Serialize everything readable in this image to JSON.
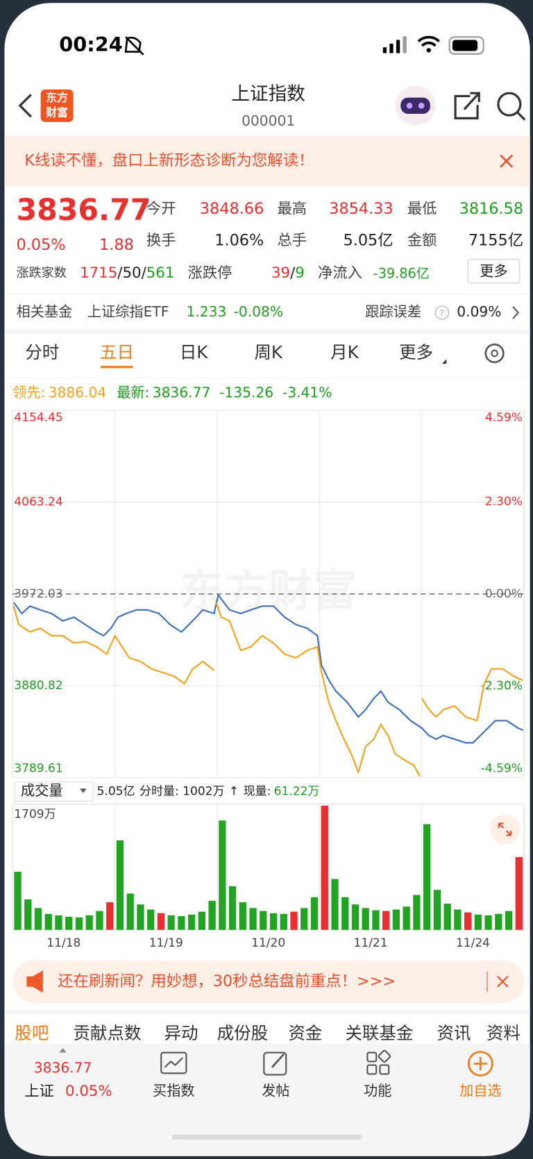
{
  "status": {
    "time": "00:24"
  },
  "nav": {
    "logo": [
      "东方",
      "财富"
    ],
    "title": "上证指数",
    "code": "000001"
  },
  "banner": {
    "text": "K线读不懂，盘口上新形态诊断为您解读！"
  },
  "quote": {
    "price": "3836.77",
    "pct": "0.05%",
    "change": "1.88",
    "fields": [
      {
        "label": "今开",
        "value": "3848.66"
      },
      {
        "label": "最高",
        "value": "3854.33"
      },
      {
        "label": "最低",
        "value": "3816.58"
      },
      {
        "label": "换手",
        "value": "1.06%"
      },
      {
        "label": "总手",
        "value": "5.05亿"
      },
      {
        "label": "金额",
        "value": "7155亿"
      }
    ],
    "breadth": {
      "label": "涨跌家数",
      "up": "1715",
      "flat": "50",
      "down": "561"
    },
    "limit": {
      "label": "涨跌停",
      "up": "39",
      "down": "9"
    },
    "inflow": {
      "label": "净流入",
      "value": "-39.86亿"
    },
    "more": "更多"
  },
  "fund": {
    "label": "相关基金",
    "name": "上证综指ETF",
    "price": "1.233",
    "pct": "-0.08%",
    "error_label": "跟踪误差",
    "error": "0.09%"
  },
  "tabs": {
    "items": [
      "分时",
      "五日",
      "日K",
      "周K",
      "月K",
      "更多"
    ],
    "active": 1
  },
  "legend": {
    "lead_label": "领先:",
    "lead": "3886.04",
    "last_label": "最新:",
    "last": "3836.77",
    "change": "-135.26",
    "pct": "-3.41%"
  },
  "chart_data": {
    "type": "line",
    "watermark": "东方财富",
    "xlim": [
      0,
      5
    ],
    "ylim": [
      3789.61,
      4154.45
    ],
    "yticks": [
      4154.45,
      4063.24,
      3972.03,
      3880.82,
      3789.61
    ],
    "y2lim": [
      -4.59,
      4.59
    ],
    "y2ticks": [
      {
        "value": 4.59,
        "label": "4.59%"
      },
      {
        "value": 2.3,
        "label": "2.30%"
      },
      {
        "value": 0,
        "label": "0.00%"
      },
      {
        "value": -2.3,
        "label": "-2.30%"
      },
      {
        "value": -4.59,
        "label": "-4.59%"
      }
    ],
    "baseline": 3972.03,
    "up_color": "#e8302f",
    "down_color": "#1f9e1f",
    "base_color": "#666666",
    "series": [
      {
        "color": "#3c6fba",
        "x": [
          0.01,
          0.09,
          0.17,
          0.27,
          0.38,
          0.49,
          0.6,
          0.71,
          0.82,
          0.89,
          0.96,
          1.03,
          1.11,
          1.21,
          1.32,
          1.43,
          1.54,
          1.65,
          1.76,
          1.86,
          1.97,
          2.01,
          2.12,
          2.23,
          2.33,
          2.44,
          2.55,
          2.66,
          2.77,
          2.88,
          2.98,
          3.02,
          3.09,
          3.16,
          3.27,
          3.38,
          3.45,
          3.53,
          3.6,
          3.67,
          3.78,
          3.89,
          4.0,
          4.07,
          4.14,
          4.21,
          4.32,
          4.43,
          4.5,
          4.61,
          4.72,
          4.83,
          4.94,
          4.99
        ],
        "values": [
          3963.6,
          3952.6,
          3959.9,
          3956.2,
          3952.6,
          3945.2,
          3948.9,
          3941.6,
          3934.2,
          3930.5,
          3937.9,
          3948.9,
          3952.6,
          3956.2,
          3956.2,
          3952.6,
          3941.6,
          3934.2,
          3945.2,
          3956.2,
          3952.6,
          3970.9,
          3956.2,
          3952.6,
          3956.2,
          3959.9,
          3959.9,
          3948.9,
          3941.6,
          3937.9,
          3930.5,
          3901.2,
          3886.5,
          3875.5,
          3864.5,
          3849.8,
          3857.1,
          3868.2,
          3875.5,
          3864.5,
          3857.1,
          3846.1,
          3838.8,
          3831.4,
          3827.8,
          3831.4,
          3827.8,
          3824.1,
          3824.1,
          3835.1,
          3846.1,
          3846.1,
          3838.8,
          3836.77
        ]
      },
      {
        "color": "#f4a21c",
        "x": [
          0.01,
          0.06,
          0.17,
          0.27,
          0.38,
          0.49,
          0.6,
          0.71,
          0.82,
          0.92,
          1.0,
          1.07,
          1.14,
          1.25,
          1.36,
          1.47,
          1.58,
          1.68,
          1.76,
          1.86,
          1.97,
          1.98,
          1.99,
          2.04,
          2.12,
          2.23,
          2.33,
          2.44,
          2.55,
          2.66,
          2.77,
          2.88,
          2.98,
          3.02,
          3.09,
          3.16,
          3.24,
          3.31,
          3.38,
          3.45,
          3.53,
          3.6,
          3.67,
          3.74,
          3.85,
          3.92,
          3.98,
          3.99,
          4.0,
          4.07,
          4.14,
          4.21,
          4.32,
          4.43,
          4.54,
          4.61,
          4.68,
          4.79,
          4.9,
          4.99
        ],
        "values": [
          3959.9,
          3941.6,
          3934.2,
          3937.9,
          3930.5,
          3930.5,
          3923.2,
          3924.7,
          3919.5,
          3912.2,
          3930.5,
          3919.5,
          3908.5,
          3904.9,
          3897.5,
          3893.9,
          3890.2,
          3882.8,
          3897.5,
          3904.9,
          3896.0,
          null,
          3963.6,
          3948.9,
          3945.2,
          3915.9,
          3919.5,
          3930.5,
          3923.2,
          3912.2,
          3908.5,
          3915.9,
          3919.5,
          3893.9,
          3864.5,
          3846.1,
          3827.8,
          3813.1,
          3794.7,
          3820.4,
          3827.8,
          3842.4,
          3831.4,
          3813.1,
          3805.8,
          3802.1,
          3791.1,
          null,
          3868.2,
          3857.1,
          3849.8,
          3857.1,
          3860.8,
          3849.8,
          3846.1,
          3882.8,
          3897.5,
          3897.5,
          3890.2,
          3886.04
        ]
      }
    ],
    "days": [
      "11/18",
      "11/19",
      "11/20",
      "11/21",
      "11/24"
    ]
  },
  "volume": {
    "label": "成交量",
    "total": "5.05亿",
    "minute": "分时量: 1002万",
    "now_label": "现量:",
    "now": "61.22万",
    "ylim": [
      0,
      1709
    ],
    "yticks": [
      {
        "value": 1709,
        "label": "1709万"
      }
    ],
    "series": [
      {
        "color": "#22a322",
        "values": [
          800,
          420,
          300,
          220,
          200,
          180,
          170,
          200,
          260,
          null,
          1231,
          500,
          350,
          280,
          null,
          200,
          190,
          210,
          250,
          400,
          1505,
          600,
          380,
          300,
          260,
          230,
          220,
          null,
          300,
          450,
          null,
          700,
          450,
          350,
          300,
          270,
          null,
          280,
          320,
          480,
          1455,
          550,
          360,
          280,
          null,
          210,
          200,
          220,
          260,
          null
        ]
      },
      {
        "color": "#e8302f",
        "values": [
          null,
          null,
          null,
          null,
          null,
          null,
          null,
          null,
          null,
          380,
          null,
          null,
          null,
          null,
          230,
          null,
          null,
          null,
          null,
          null,
          null,
          null,
          null,
          null,
          null,
          null,
          null,
          250,
          null,
          null,
          1709,
          null,
          null,
          null,
          null,
          null,
          260,
          null,
          null,
          null,
          null,
          null,
          null,
          null,
          240,
          null,
          null,
          null,
          null,
          1002
        ]
      }
    ]
  },
  "ad": {
    "text": "还在刷新闻？用妙想，30秒总结盘前重点！>>>"
  },
  "subtabs": [
    "股吧",
    "贡献点数",
    "异动",
    "成份股",
    "资金",
    "关联基金",
    "资讯",
    "资料"
  ],
  "bottom": {
    "price": "3836.77",
    "name": "上证",
    "pct": "0.05%",
    "buttons": [
      "买指数",
      "发帖",
      "功能",
      "加自选"
    ]
  }
}
